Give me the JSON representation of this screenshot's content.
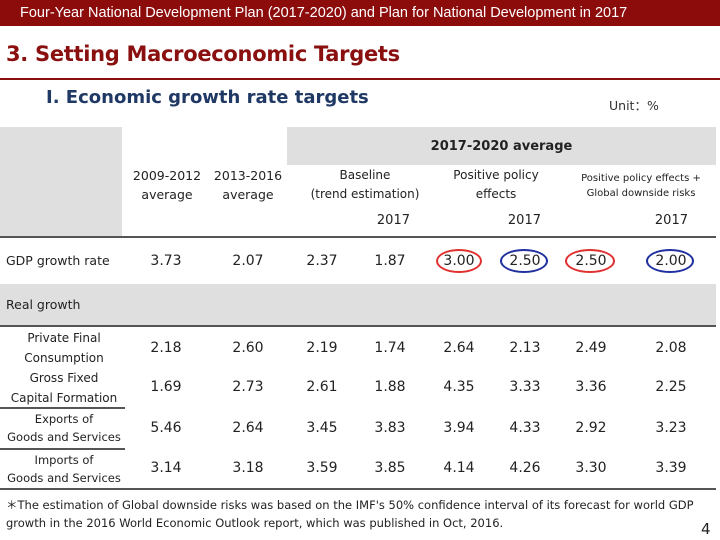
{
  "header": {
    "banner": "Four-Year National Development Plan (2017-2020) and Plan for National Development in 2017"
  },
  "section_title": "3. Setting Macroeconomic Targets",
  "subtitle": "I. Economic growth rate targets",
  "unit": "Unit：%",
  "table": {
    "group_header": "2017-2020 average",
    "col_2009": [
      "2009-2012",
      "average"
    ],
    "col_2013": [
      "2013-2016",
      "average"
    ],
    "baseline": [
      "Baseline",
      "(trend estimation)"
    ],
    "positive": [
      "Positive policy",
      "effects"
    ],
    "positive_global": [
      "Positive policy effects +",
      "Global downside risks"
    ],
    "year": "2017",
    "gdp": {
      "label": "GDP growth rate",
      "values": [
        "3.73",
        "2.07",
        "2.37",
        "1.87",
        "3.00",
        "2.50",
        "2.50",
        "2.00"
      ]
    },
    "real_growth_label": "Real growth",
    "rows": [
      {
        "label": [
          "Private Final",
          "Consumption"
        ],
        "values": [
          "2.18",
          "2.60",
          "2.19",
          "1.74",
          "2.64",
          "2.13",
          "2.49",
          "2.08"
        ]
      },
      {
        "label": [
          "Gross Fixed",
          "Capital Formation"
        ],
        "values": [
          "1.69",
          "2.73",
          "2.61",
          "1.88",
          "4.35",
          "3.33",
          "3.36",
          "2.25"
        ]
      },
      {
        "label": [
          "Exports of",
          "Goods and Services"
        ],
        "values": [
          "5.46",
          "2.64",
          "3.45",
          "3.83",
          "3.94",
          "4.33",
          "2.92",
          "3.23"
        ]
      },
      {
        "label": [
          "Imports of",
          "Goods and Services"
        ],
        "values": [
          "3.14",
          "3.18",
          "3.59",
          "3.85",
          "4.14",
          "4.26",
          "3.30",
          "3.39"
        ]
      }
    ]
  },
  "note": "＊The estimation of Global downside risks was based on the IMF's 50% confidence interval of its forecast for world GDP growth in the 2016 World Economic Outlook report, which was published in Oct, 2016.",
  "page_number": "4"
}
